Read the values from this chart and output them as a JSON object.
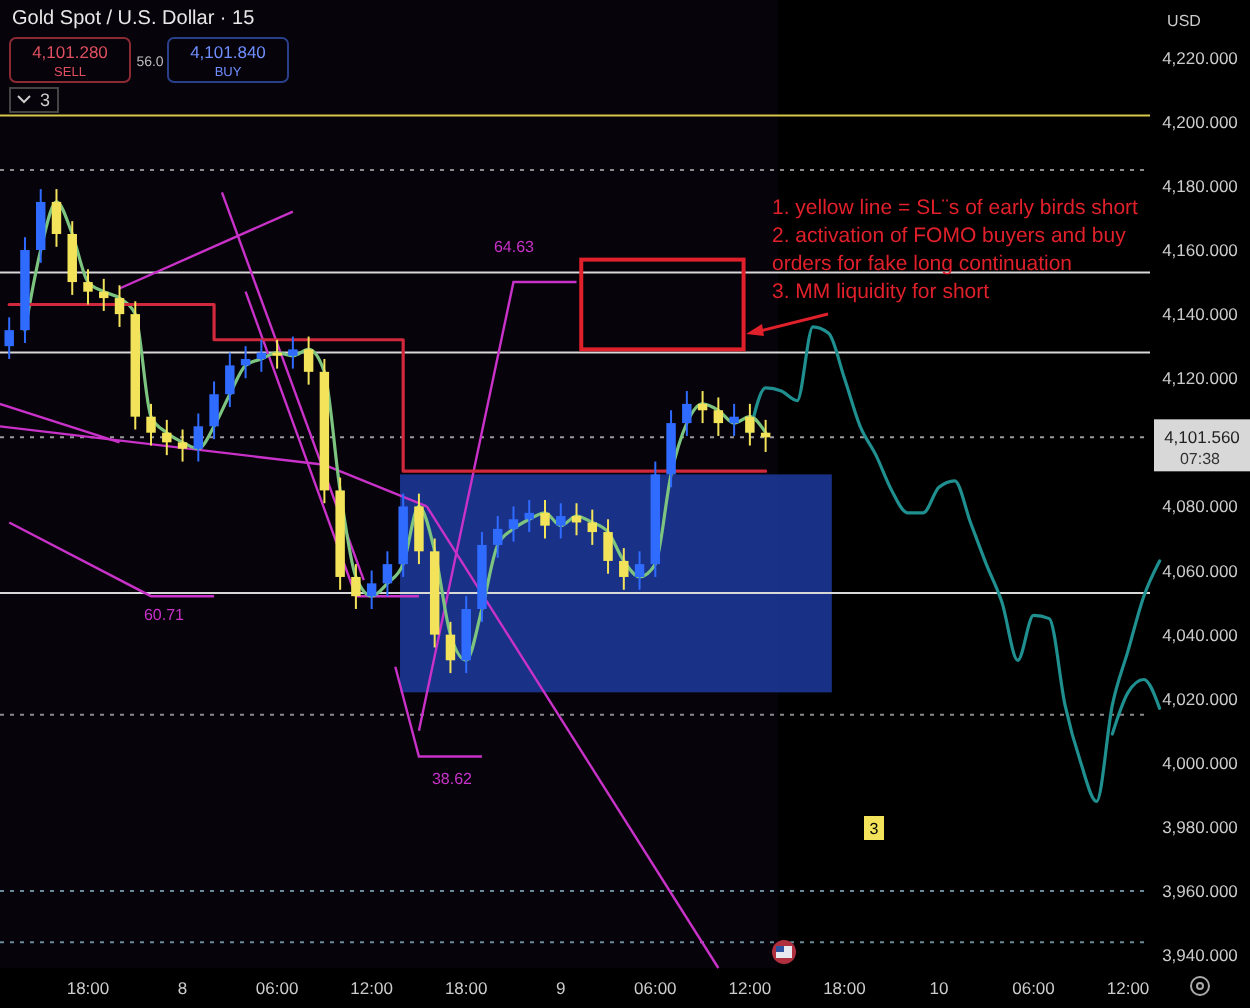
{
  "chart_data": {
    "type": "candlestick",
    "title": "Gold Spot / U.S. Dollar · 15",
    "categories": [
      null,
      null,
      null,
      null,
      null,
      "18:00",
      null,
      null,
      null,
      null,
      null,
      "8",
      null,
      null,
      null,
      null,
      null,
      "06:00",
      null,
      null,
      null,
      null,
      null,
      "12:00",
      null,
      null,
      null,
      null,
      null,
      "18:00",
      null,
      null,
      null,
      null,
      null,
      "9",
      null,
      null,
      null,
      null,
      null,
      "06:00",
      null,
      null,
      null,
      null,
      null,
      "12:00",
      null,
      null,
      null,
      null,
      null,
      "18:00",
      null,
      null,
      null,
      null,
      null,
      "10",
      null,
      null,
      null,
      null,
      null,
      "06:00",
      null,
      null,
      null,
      null,
      null,
      "12:00",
      null,
      null
    ],
    "ohlc": [
      [
        4130,
        4139,
        4126,
        4135
      ],
      [
        4135,
        4164,
        4131,
        4160
      ],
      [
        4160,
        4179,
        4156,
        4175
      ],
      [
        4175,
        4179,
        4161,
        4165
      ],
      [
        4165,
        4169,
        4146,
        4150
      ],
      [
        4150,
        4154,
        4143,
        4147
      ],
      [
        4147,
        4151,
        4141,
        4145
      ],
      [
        4145,
        4149,
        4136,
        4140
      ],
      [
        4140,
        4144,
        4104,
        4108
      ],
      [
        4108,
        4112,
        4099,
        4103
      ],
      [
        4103,
        4107,
        4096,
        4100
      ],
      [
        4100,
        4104,
        4094,
        4098
      ],
      [
        4098,
        4109,
        4094,
        4105
      ],
      [
        4105,
        4119,
        4101,
        4115
      ],
      [
        4115,
        4128,
        4111,
        4124
      ],
      [
        4124,
        4130,
        4120,
        4126
      ],
      [
        4126,
        4132,
        4122,
        4128
      ],
      [
        4128,
        4132,
        4123,
        4127
      ],
      [
        4127,
        4133,
        4123,
        4129
      ],
      [
        4129,
        4133,
        4118,
        4122
      ],
      [
        4122,
        4126,
        4081,
        4085
      ],
      [
        4085,
        4089,
        4054,
        4058
      ],
      [
        4058,
        4062,
        4048,
        4052
      ],
      [
        4052,
        4060,
        4048,
        4056
      ],
      [
        4056,
        4066,
        4052,
        4062
      ],
      [
        4062,
        4084,
        4058,
        4080
      ],
      [
        4080,
        4084,
        4062,
        4066
      ],
      [
        4066,
        4070,
        4036,
        4040
      ],
      [
        4040,
        4044,
        4028,
        4032
      ],
      [
        4032,
        4052,
        4028,
        4048
      ],
      [
        4048,
        4072,
        4044,
        4068
      ],
      [
        4068,
        4077,
        4064,
        4073
      ],
      [
        4073,
        4080,
        4069,
        4076
      ],
      [
        4076,
        4082,
        4072,
        4078
      ],
      [
        4078,
        4082,
        4070,
        4074
      ],
      [
        4074,
        4081,
        4070,
        4077
      ],
      [
        4077,
        4081,
        4071,
        4075
      ],
      [
        4075,
        4079,
        4068,
        4072
      ],
      [
        4072,
        4076,
        4059,
        4063
      ],
      [
        4063,
        4067,
        4054,
        4058
      ],
      [
        4058,
        4066,
        4054,
        4062
      ],
      [
        4062,
        4094,
        4058,
        4090
      ],
      [
        4090,
        4110,
        4086,
        4106
      ],
      [
        4106,
        4116,
        4102,
        4112
      ],
      [
        4112,
        4116,
        4106,
        4110
      ],
      [
        4110,
        4114,
        4102,
        4106
      ],
      [
        4106,
        4112,
        4102,
        4108
      ],
      [
        4108,
        4112,
        4099,
        4103
      ],
      [
        4103,
        4107,
        4097,
        4101.56
      ],
      null,
      null,
      null,
      null,
      null,
      null,
      null,
      null,
      null,
      null,
      null,
      null,
      null,
      null,
      null,
      null,
      null,
      null,
      null,
      null,
      null,
      null,
      null,
      null,
      null
    ],
    "series": [
      {
        "type": "line",
        "color": "#7cc47f",
        "values": [
          null,
          4135,
          4160,
          4175,
          4165,
          4150,
          4147,
          4145,
          4140,
          4108,
          4103,
          4100,
          4098,
          4105,
          4115,
          4124,
          4126,
          4128,
          4127,
          4129,
          4122,
          4085,
          4058,
          4052,
          4056,
          4062,
          4080,
          4066,
          4040,
          4032,
          4048,
          4068,
          4073,
          4076,
          4078,
          4074,
          4077,
          4075,
          4072,
          4063,
          4058,
          4062,
          4090,
          4106,
          4112,
          4110,
          4106,
          4108,
          4103,
          null,
          null,
          null,
          null,
          null,
          null,
          null,
          null,
          null,
          null,
          null,
          null,
          null,
          null,
          null,
          null,
          null,
          null,
          null,
          null,
          null,
          null,
          null,
          null,
          null
        ]
      },
      {
        "type": "step",
        "color": "#d0283c",
        "values": [
          4143,
          4143,
          4143,
          4143,
          4143,
          4143,
          4143,
          4143,
          4143,
          4143,
          4143,
          4143,
          4143,
          4132,
          4132,
          4132,
          4132,
          4132,
          4132,
          4132,
          4132,
          4132,
          4132,
          4132,
          4132,
          4091,
          4091,
          4091,
          4091,
          4091,
          4091,
          4091,
          4091,
          4091,
          4091,
          4091,
          4091,
          4091,
          4091,
          4091,
          4091,
          4091,
          4091,
          4091,
          4091,
          4091,
          4091,
          4091,
          4091,
          null,
          null,
          null,
          null,
          null,
          null,
          null,
          null,
          null,
          null,
          null,
          null,
          null,
          null,
          null,
          null,
          null,
          null,
          null,
          null,
          null,
          null,
          null,
          null,
          null
        ]
      },
      {
        "type": "line",
        "color": "#1f8f8f",
        "values": [
          null,
          null,
          null,
          null,
          null,
          null,
          null,
          null,
          null,
          null,
          null,
          null,
          null,
          null,
          null,
          null,
          null,
          null,
          null,
          null,
          null,
          null,
          null,
          null,
          null,
          null,
          null,
          null,
          null,
          null,
          null,
          null,
          null,
          null,
          null,
          null,
          null,
          null,
          null,
          null,
          null,
          null,
          null,
          null,
          null,
          null,
          null,
          4103,
          4117,
          4116,
          4113,
          4136,
          4134,
          4120,
          4105,
          4096,
          4085,
          4078,
          4078,
          4086,
          4088,
          4075,
          4062,
          4050,
          4032,
          4046,
          4045,
          4018,
          4000,
          3988,
          4018,
          4035,
          4052,
          4063
        ]
      },
      {
        "type": "line",
        "color": "#1f8f8f",
        "values": [
          null,
          null,
          null,
          null,
          null,
          null,
          null,
          null,
          null,
          null,
          null,
          null,
          null,
          null,
          null,
          null,
          null,
          null,
          null,
          null,
          null,
          null,
          null,
          null,
          null,
          null,
          null,
          null,
          null,
          null,
          null,
          null,
          null,
          null,
          null,
          null,
          null,
          null,
          null,
          null,
          null,
          null,
          null,
          null,
          null,
          null,
          null,
          null,
          null,
          null,
          null,
          null,
          null,
          null,
          null,
          null,
          null,
          null,
          null,
          null,
          null,
          null,
          null,
          null,
          null,
          null,
          null,
          null,
          null,
          null,
          4009,
          4022,
          4026,
          4017
        ]
      }
    ],
    "ylim": [
      3936,
      4238
    ],
    "yticks": [
      {
        "value": 3940,
        "label": "3,940.000"
      },
      {
        "value": 3960,
        "label": "3,960.000"
      },
      {
        "value": 3980,
        "label": "3,980.000"
      },
      {
        "value": 4000,
        "label": "4,000.000"
      },
      {
        "value": 4020,
        "label": "4,020.000"
      },
      {
        "value": 4040,
        "label": "4,040.000"
      },
      {
        "value": 4060,
        "label": "4,060.000"
      },
      {
        "value": 4080,
        "label": "4,080.000"
      },
      {
        "value": 4120,
        "label": "4,120.000"
      },
      {
        "value": 4140,
        "label": "4,140.000"
      },
      {
        "value": 4160,
        "label": "4,160.000"
      },
      {
        "value": 4180,
        "label": "4,180.000"
      },
      {
        "value": 4200,
        "label": "4,200.000"
      },
      {
        "value": 4220,
        "label": "4,220.000"
      }
    ],
    "ref_lines": [
      {
        "axis": "y",
        "value": 4202,
        "color": "#d8c84a",
        "line_style": "solid"
      },
      {
        "axis": "y",
        "value": 4185,
        "color": "#8a8a8a",
        "line_style": "dotted"
      },
      {
        "axis": "y",
        "value": 4153,
        "color": "#d8d8d8",
        "line_style": "solid"
      },
      {
        "axis": "y",
        "value": 4128,
        "color": "#d8d8d8",
        "line_style": "solid"
      },
      {
        "axis": "y",
        "value": 4053,
        "color": "#d8d8d8",
        "line_style": "solid"
      },
      {
        "axis": "y",
        "value": 4015,
        "color": "#8a8a8a",
        "line_style": "dotted"
      },
      {
        "axis": "y",
        "value": 3960,
        "color": "#6a8a9a",
        "line_style": "dotted"
      },
      {
        "axis": "y",
        "value": 3944,
        "color": "#6a8a9a",
        "line_style": "dotted"
      },
      {
        "axis": "y",
        "value": 4101.56,
        "color": "#9a9a9a",
        "line_style": "dotted",
        "label": "4,101.560"
      }
    ],
    "annotations": [
      "4,101.280",
      "SELL",
      "56.0",
      "4,101.840",
      "BUY",
      "3",
      "1. yellow line = SL¨s of early birds short",
      "2. activation of FOMO buyers and buy",
      "orders for fake long continuation",
      "3. MM liquidity for short",
      "07:38",
      "USD",
      "3",
      "64.63",
      "60.71",
      "38.62"
    ]
  }
}
